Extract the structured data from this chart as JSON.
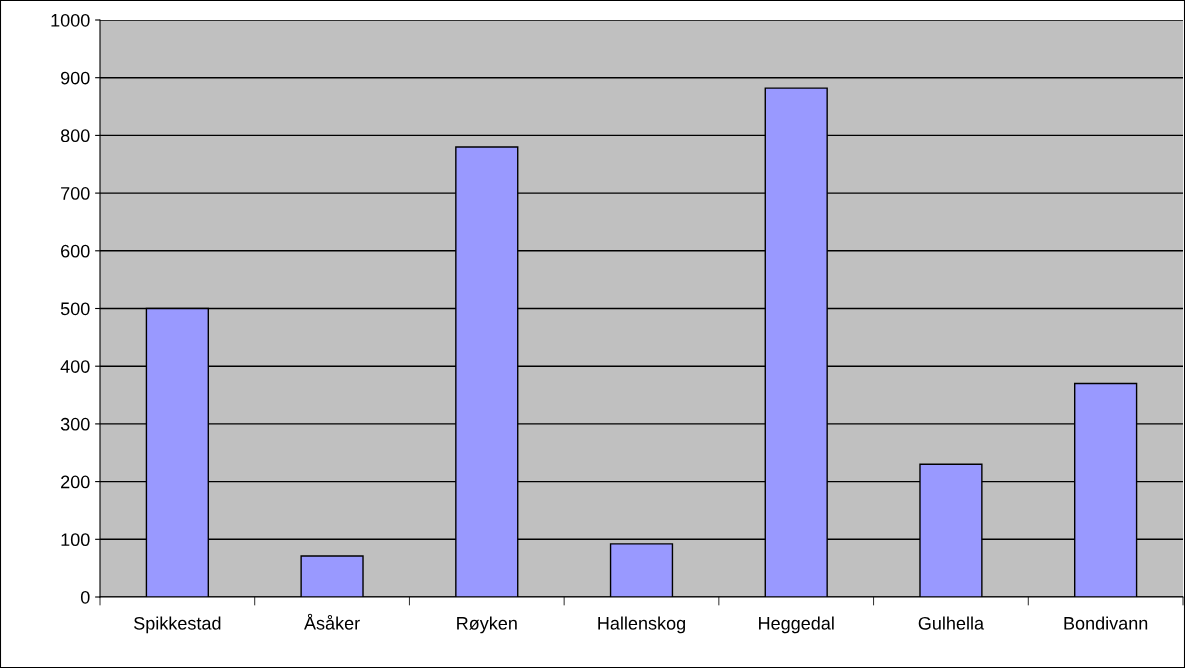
{
  "chart_data": {
    "type": "bar",
    "categories": [
      "Spikkestad",
      "Åsåker",
      "Røyken",
      "Hallenskog",
      "Heggedal",
      "Gulhella",
      "Bondivann"
    ],
    "values": [
      500,
      71,
      780,
      92,
      882,
      230,
      370
    ],
    "color": "#9999ff",
    "ylim": [
      0,
      1000
    ],
    "yticks": [
      0,
      100,
      200,
      300,
      400,
      500,
      600,
      700,
      800,
      900,
      1000
    ],
    "grid": "y"
  }
}
